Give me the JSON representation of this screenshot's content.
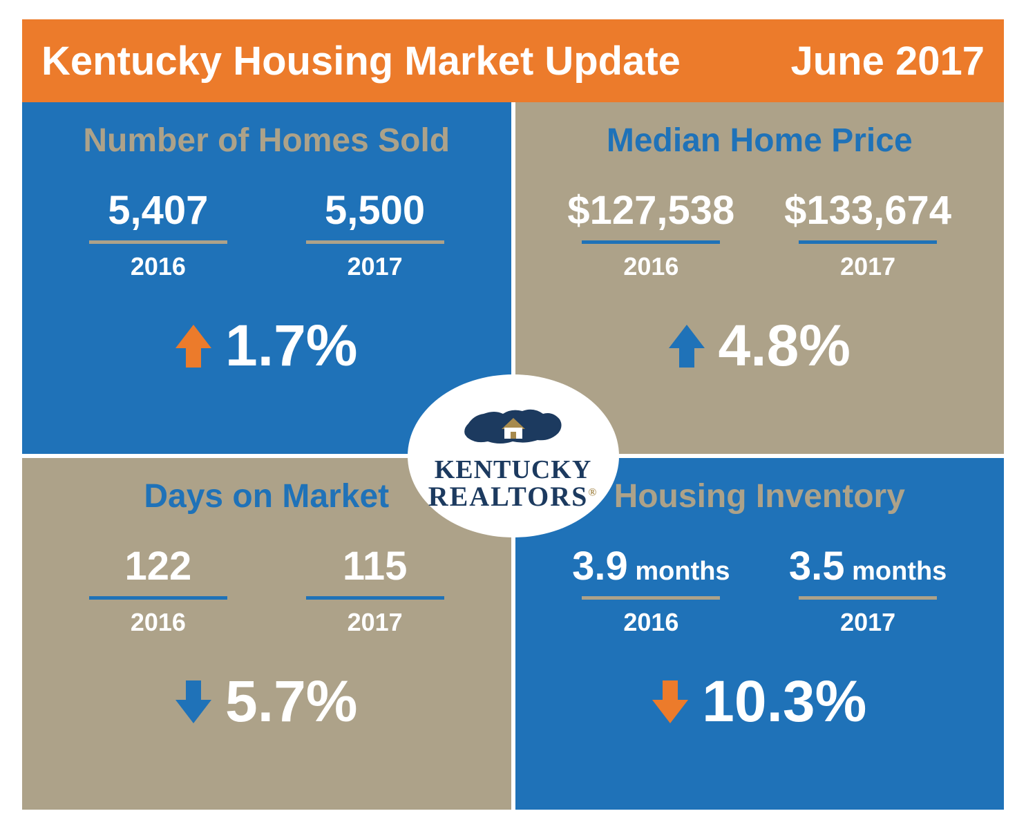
{
  "colors": {
    "orange": "#ec7b2b",
    "blue": "#1f72b8",
    "tan": "#ada289",
    "white": "#ffffff",
    "dark_navy": "#1c3a5f",
    "gold": "#a78a4d"
  },
  "header": {
    "title": "Kentucky Housing Market Update",
    "date": "June 2017",
    "bg": "#ec7b2b",
    "text_color": "#ffffff",
    "fontsize": 58
  },
  "quadrants": [
    {
      "id": "homes-sold",
      "title": "Number of Homes Sold",
      "title_color": "#ada289",
      "bg": "#1f72b8",
      "rule_color": "#ada289",
      "left": {
        "value": "5,407",
        "year": "2016"
      },
      "right": {
        "value": "5,500",
        "year": "2017"
      },
      "change": {
        "direction": "up",
        "arrow_color": "#ec7b2b",
        "pct": "1.7%"
      }
    },
    {
      "id": "median-price",
      "title": "Median Home Price",
      "title_color": "#1f72b8",
      "bg": "#ada289",
      "rule_color": "#1f72b8",
      "left": {
        "value": "$127,538",
        "year": "2016"
      },
      "right": {
        "value": "$133,674",
        "year": "2017"
      },
      "change": {
        "direction": "up",
        "arrow_color": "#1f72b8",
        "pct": "4.8%"
      }
    },
    {
      "id": "days-on-market",
      "title": "Days on Market",
      "title_color": "#1f72b8",
      "bg": "#ada289",
      "rule_color": "#1f72b8",
      "left": {
        "value": "122",
        "year": "2016"
      },
      "right": {
        "value": "115",
        "year": "2017"
      },
      "change": {
        "direction": "down",
        "arrow_color": "#1f72b8",
        "pct": "5.7%"
      }
    },
    {
      "id": "inventory",
      "title": "Housing Inventory",
      "title_color": "#ada289",
      "bg": "#1f72b8",
      "rule_color": "#ada289",
      "left": {
        "value": "3.9",
        "unit": "months",
        "year": "2016"
      },
      "right": {
        "value": "3.5",
        "unit": "months",
        "year": "2017"
      },
      "change": {
        "direction": "down",
        "arrow_color": "#ec7b2b",
        "pct": "10.3%"
      }
    }
  ],
  "badge": {
    "line1": "KENTUCKY",
    "line2": "REALTORS",
    "text_color": "#1c3a5f",
    "house_roof_color": "#a78a4d",
    "state_color": "#1c3a5f",
    "registered": "®"
  }
}
